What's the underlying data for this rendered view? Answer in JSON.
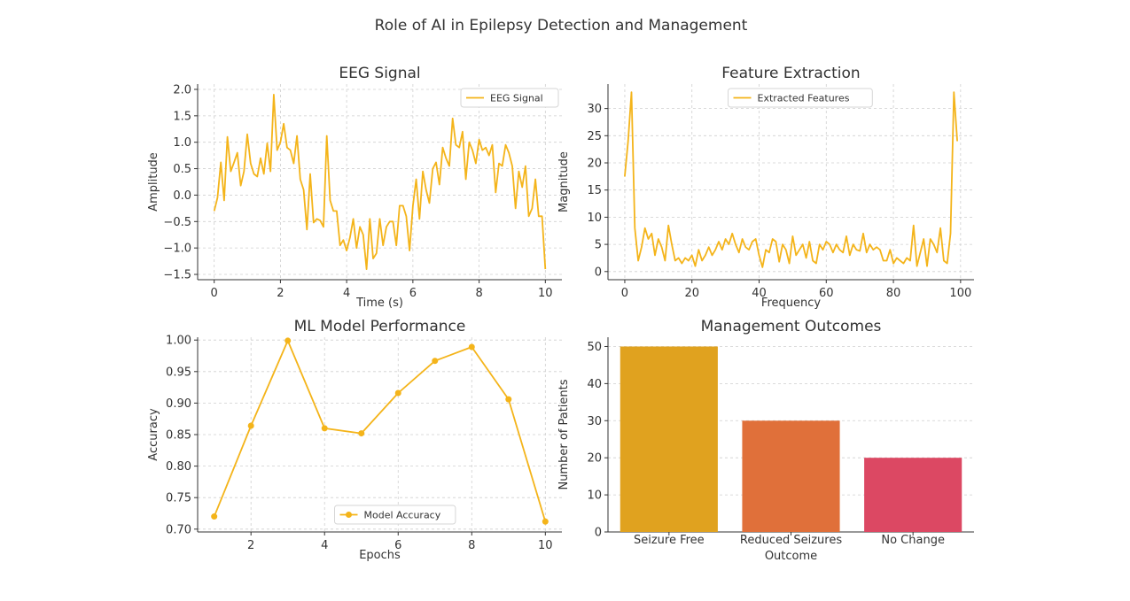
{
  "figure": {
    "title": "Role of AI in Epilepsy Detection and Management"
  },
  "colors": {
    "line": "#f4b41a",
    "bar1": "#e0a21f",
    "bar2": "#e0703a",
    "bar3": "#dc4863"
  },
  "chart_data": [
    {
      "id": "eeg",
      "type": "line",
      "title": "EEG Signal",
      "xlabel": "Time (s)",
      "ylabel": "Amplitude",
      "xlim": [
        -0.5,
        10.5
      ],
      "ylim": [
        -1.6,
        2.1
      ],
      "xticks": [
        0,
        2,
        4,
        6,
        8,
        10
      ],
      "yticks": [
        -1.5,
        -1.0,
        -0.5,
        0.0,
        0.5,
        1.0,
        1.5,
        2.0
      ],
      "ytick_decimals": 1,
      "grid": true,
      "legend_position": "top-right",
      "series": [
        {
          "name": "EEG Signal",
          "marker": false,
          "x": [
            0.0,
            0.1,
            0.2,
            0.3,
            0.4,
            0.5,
            0.6,
            0.7,
            0.8,
            0.9,
            1.0,
            1.1,
            1.2,
            1.3,
            1.4,
            1.5,
            1.6,
            1.7,
            1.8,
            1.9,
            2.0,
            2.1,
            2.2,
            2.3,
            2.4,
            2.5,
            2.6,
            2.7,
            2.8,
            2.9,
            3.0,
            3.1,
            3.2,
            3.3,
            3.4,
            3.5,
            3.6,
            3.7,
            3.8,
            3.9,
            4.0,
            4.1,
            4.2,
            4.3,
            4.4,
            4.5,
            4.6,
            4.7,
            4.8,
            4.9,
            5.0,
            5.1,
            5.2,
            5.3,
            5.4,
            5.5,
            5.6,
            5.7,
            5.8,
            5.9,
            6.0,
            6.1,
            6.2,
            6.3,
            6.4,
            6.5,
            6.6,
            6.7,
            6.8,
            6.9,
            7.0,
            7.1,
            7.2,
            7.3,
            7.4,
            7.5,
            7.6,
            7.7,
            7.8,
            7.9,
            8.0,
            8.1,
            8.2,
            8.3,
            8.4,
            8.5,
            8.6,
            8.7,
            8.8,
            8.9,
            9.0,
            9.1,
            9.2,
            9.3,
            9.4,
            9.5,
            9.6,
            9.7,
            9.8,
            9.9,
            10.0
          ],
          "y": [
            -0.3,
            -0.05,
            0.62,
            -0.1,
            1.1,
            0.45,
            0.62,
            0.8,
            0.18,
            0.45,
            1.15,
            0.6,
            0.4,
            0.35,
            0.7,
            0.4,
            0.98,
            0.45,
            1.9,
            0.85,
            1.0,
            1.35,
            0.9,
            0.85,
            0.6,
            1.12,
            0.3,
            0.1,
            -0.65,
            0.4,
            -0.52,
            -0.45,
            -0.48,
            -0.6,
            1.12,
            -0.1,
            -0.3,
            -0.3,
            -0.95,
            -0.85,
            -1.05,
            -0.8,
            -0.45,
            -1.0,
            -0.6,
            -0.75,
            -1.4,
            -0.45,
            -1.2,
            -1.1,
            -0.45,
            -0.95,
            -0.6,
            -0.5,
            -0.5,
            -0.95,
            -0.2,
            -0.2,
            -0.4,
            -1.05,
            -0.2,
            0.3,
            -0.45,
            0.45,
            0.1,
            -0.15,
            0.5,
            0.62,
            0.2,
            0.9,
            0.7,
            0.55,
            1.45,
            0.95,
            0.9,
            1.2,
            0.3,
            1.0,
            0.85,
            0.6,
            1.05,
            0.85,
            0.9,
            0.75,
            0.95,
            0.05,
            0.6,
            0.55,
            0.95,
            0.8,
            0.55,
            -0.25,
            0.45,
            0.15,
            0.55,
            -0.4,
            -0.25,
            0.3,
            -0.4,
            -0.4,
            -1.4
          ]
        }
      ]
    },
    {
      "id": "features",
      "type": "line",
      "title": "Feature Extraction",
      "xlabel": "Frequency",
      "ylabel": "Magnitude",
      "xlim": [
        -5,
        104
      ],
      "ylim": [
        -1.5,
        34.5
      ],
      "xticks": [
        0,
        20,
        40,
        60,
        80,
        100
      ],
      "yticks": [
        0,
        5,
        10,
        15,
        20,
        25,
        30
      ],
      "ytick_decimals": 0,
      "grid": true,
      "legend_position": "top-center",
      "series": [
        {
          "name": "Extracted Features",
          "marker": false,
          "x": [
            0,
            1,
            2,
            3,
            4,
            5,
            6,
            7,
            8,
            9,
            10,
            11,
            12,
            13,
            14,
            15,
            16,
            17,
            18,
            19,
            20,
            21,
            22,
            23,
            24,
            25,
            26,
            27,
            28,
            29,
            30,
            31,
            32,
            33,
            34,
            35,
            36,
            37,
            38,
            39,
            40,
            41,
            42,
            43,
            44,
            45,
            46,
            47,
            48,
            49,
            50,
            51,
            52,
            53,
            54,
            55,
            56,
            57,
            58,
            59,
            60,
            61,
            62,
            63,
            64,
            65,
            66,
            67,
            68,
            69,
            70,
            71,
            72,
            73,
            74,
            75,
            76,
            77,
            78,
            79,
            80,
            81,
            82,
            83,
            84,
            85,
            86,
            87,
            88,
            89,
            90,
            91,
            92,
            93,
            94,
            95,
            96,
            97,
            98,
            99
          ],
          "y": [
            17.5,
            24,
            33,
            8,
            2,
            4.5,
            8,
            6,
            7,
            3,
            6,
            4.5,
            2,
            8.5,
            5,
            2,
            2.5,
            1.5,
            2.5,
            2,
            3,
            1,
            4,
            2,
            3,
            4.5,
            3,
            4,
            5.5,
            4,
            6,
            5,
            7,
            5,
            3.5,
            6,
            4.5,
            4,
            5.5,
            6,
            3,
            0.8,
            4,
            3.5,
            6,
            5.5,
            1.8,
            5,
            4,
            1.5,
            6.5,
            3,
            4,
            5,
            2.5,
            5.5,
            2,
            1.5,
            5,
            4,
            5.5,
            5,
            3.5,
            5,
            4,
            3.5,
            6.5,
            3,
            5,
            4,
            3.8,
            7,
            3.5,
            5,
            4,
            4.5,
            4,
            2,
            2,
            4,
            1.5,
            2.5,
            2,
            1.5,
            2.5,
            2,
            8.5,
            1,
            3.5,
            6,
            1,
            6,
            5,
            3.5,
            8,
            2,
            1.5,
            7,
            33,
            24
          ]
        }
      ]
    },
    {
      "id": "performance",
      "type": "line",
      "title": "ML Model Performance",
      "xlabel": "Epochs",
      "ylabel": "Accuracy",
      "xlim": [
        0.55,
        10.45
      ],
      "ylim": [
        0.6955,
        1.0045
      ],
      "xticks": [
        2,
        4,
        6,
        8,
        10
      ],
      "yticks": [
        0.7,
        0.75,
        0.8,
        0.85,
        0.9,
        0.95,
        1.0
      ],
      "ytick_decimals": 2,
      "grid": true,
      "legend_position": "bottom-center",
      "series": [
        {
          "name": "Model Accuracy",
          "marker": true,
          "x": [
            1,
            2,
            3,
            4,
            5,
            6,
            7,
            8,
            9,
            10
          ],
          "y": [
            0.72,
            0.864,
            0.999,
            0.86,
            0.852,
            0.916,
            0.967,
            0.989,
            0.906,
            0.712
          ]
        }
      ]
    },
    {
      "id": "outcomes",
      "type": "bar",
      "title": "Management Outcomes",
      "xlabel": "Outcome",
      "ylabel": "Number of Patients",
      "ylim": [
        0,
        52.5
      ],
      "yticks": [
        0,
        10,
        20,
        30,
        40,
        50
      ],
      "ytick_decimals": 0,
      "grid": true,
      "categories": [
        "Seizure Free",
        "Reduced Seizures",
        "No Change"
      ],
      "values": [
        50,
        30,
        20
      ]
    }
  ]
}
